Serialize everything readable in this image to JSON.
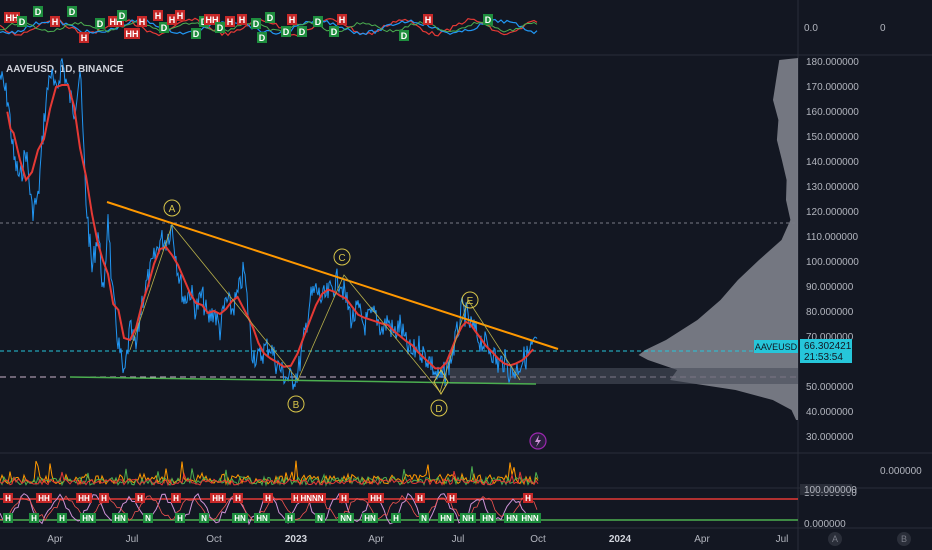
{
  "symbol_title": "AAVEUSD, 1D, BINANCE",
  "colors": {
    "background": "#131722",
    "price_line": "#2196f3",
    "moving_average": "#e53935",
    "resistance_trendline": "#ff9800",
    "support_trendline": "#4caf50",
    "current_price_line": "#26c6da",
    "volume_profile": "#9598a1",
    "wave_labels": "#d6c449",
    "signal_buy": "#1e8e3e",
    "signal_sell": "#c62828"
  },
  "top_pane": {
    "value_left": "0.0",
    "value_right": "0",
    "signals": [
      "HH",
      "D",
      "D",
      "H",
      "D",
      "H",
      "D",
      "HH",
      "D",
      "HH",
      "H",
      "H",
      "D",
      "H",
      "H",
      "D",
      "D",
      "HH",
      "D",
      "H",
      "H",
      "D",
      "D",
      "D",
      "D",
      "H",
      "D",
      "D",
      "D",
      "H",
      "D",
      "H",
      "D"
    ]
  },
  "price_axis": {
    "labels": [
      "180.000000",
      "170.000000",
      "160.000000",
      "150.000000",
      "140.000000",
      "130.000000",
      "120.000000",
      "110.000000",
      "100.000000",
      "90.000000",
      "80.000000",
      "70.000000",
      "50.000000",
      "40.000000",
      "30.000000"
    ]
  },
  "current_price": {
    "symbol_badge": "AAVEUSD",
    "price": "66.302421",
    "countdown": "21:53:54"
  },
  "wave_labels": [
    "A",
    "B",
    "C",
    "D",
    "E"
  ],
  "lower_pane_1": {
    "value": "0.000000"
  },
  "lower_pane_2": {
    "value_top": "100.000000",
    "value_bottom": "0.000000",
    "signals_top": [
      "H",
      "HH",
      "HH",
      "H",
      "H",
      "H",
      "HH",
      "H",
      "H",
      "H",
      "HNNN",
      "H",
      "HH",
      "H",
      "H",
      "H"
    ],
    "signals_bottom": [
      "H",
      "H",
      "H",
      "HN",
      "HN",
      "N",
      "H",
      "N",
      "HN",
      "HN",
      "H",
      "N",
      "NN",
      "HN",
      "H",
      "N",
      "HN",
      "NH",
      "HN",
      "HN",
      "HNN"
    ]
  },
  "time_axis": {
    "labels": [
      "Apr",
      "Jul",
      "Oct",
      "2023",
      "Apr",
      "Jul",
      "Oct",
      "2024",
      "Apr",
      "Jul"
    ]
  },
  "buttons": {
    "a": "A",
    "b": "B"
  }
}
